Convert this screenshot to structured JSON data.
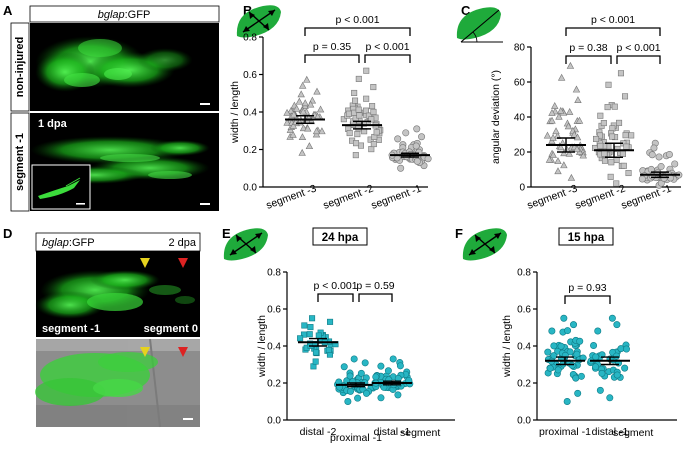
{
  "panels": {
    "A": {
      "letter": "A",
      "header_gene": "bglap",
      "header_suffix": ":GFP",
      "row1_label": "non-injured",
      "row2_label": "segment -1",
      "row2_time": "1 dpa"
    },
    "D": {
      "letter": "D",
      "header_gene": "bglap",
      "header_suffix": ":GFP",
      "time": "2 dpa",
      "seg_left": "segment -1",
      "seg_right": "segment 0"
    }
  },
  "chart_data": [
    {
      "id": "B",
      "letter": "B",
      "type": "scatter",
      "ylabel": "width / length",
      "ylim": [
        0,
        0.8
      ],
      "yticks": [
        0,
        0.2,
        0.4,
        0.6,
        0.8
      ],
      "categories": [
        "segment -3",
        "segment -2",
        "segment -1"
      ],
      "markers": [
        "triangle",
        "square",
        "circle"
      ],
      "means": [
        0.36,
        0.33,
        0.17
      ],
      "ci": [
        [
          0.34,
          0.38
        ],
        [
          0.31,
          0.35
        ],
        [
          0.16,
          0.18
        ]
      ],
      "spread": [
        [
          0.18,
          0.57
        ],
        [
          0.17,
          0.62
        ],
        [
          0.1,
          0.31
        ]
      ],
      "n": [
        55,
        55,
        50
      ],
      "comparisons": [
        {
          "from": 0,
          "to": 1,
          "label": "p = 0.35",
          "level": 1
        },
        {
          "from": 1,
          "to": 2,
          "label": "p < 0.001",
          "level": 1
        },
        {
          "from": 0,
          "to": 2,
          "label": "p < 0.001",
          "level": 2
        }
      ]
    },
    {
      "id": "C",
      "letter": "C",
      "type": "scatter",
      "ylabel": "angular deviation (°)",
      "ylim": [
        0,
        80
      ],
      "yticks": [
        0,
        20,
        40,
        60,
        80
      ],
      "categories": [
        "segment -3",
        "segment -2",
        "segment -1"
      ],
      "markers": [
        "triangle",
        "square",
        "circle"
      ],
      "means": [
        24,
        21,
        7
      ],
      "ci": [
        [
          20,
          28
        ],
        [
          17,
          25
        ],
        [
          5.5,
          8.5
        ]
      ],
      "spread": [
        [
          5,
          69
        ],
        [
          2,
          65
        ],
        [
          1,
          25
        ]
      ],
      "n": [
        55,
        55,
        45
      ],
      "comparisons": [
        {
          "from": 0,
          "to": 1,
          "label": "p = 0.38",
          "level": 1
        },
        {
          "from": 1,
          "to": 2,
          "label": "p < 0.001",
          "level": 1
        },
        {
          "from": 0,
          "to": 2,
          "label": "p < 0.001",
          "level": 2
        }
      ]
    },
    {
      "id": "E",
      "letter": "E",
      "type": "scatter",
      "title": "24 hpa",
      "ylabel": "width / length",
      "xlabel": "segment",
      "ylim": [
        0,
        0.8
      ],
      "yticks": [
        0,
        0.2,
        0.4,
        0.6,
        0.8
      ],
      "categories": [
        "distal -2",
        "proximal -1",
        "distal -1"
      ],
      "markers": [
        "square",
        "circle",
        "circle"
      ],
      "means": [
        0.42,
        0.19,
        0.2
      ],
      "ci": [
        [
          0.4,
          0.44
        ],
        [
          0.18,
          0.2
        ],
        [
          0.19,
          0.21
        ]
      ],
      "spread": [
        [
          0.29,
          0.55
        ],
        [
          0.1,
          0.33
        ],
        [
          0.12,
          0.33
        ]
      ],
      "n": [
        35,
        40,
        40
      ],
      "comparisons": [
        {
          "from": 0,
          "to": 1,
          "label": "p < 0.001",
          "level": 1
        },
        {
          "from": 1,
          "to": 2,
          "label": "p = 0.59",
          "level": 1
        }
      ]
    },
    {
      "id": "F",
      "letter": "F",
      "type": "scatter",
      "title": "15 hpa",
      "ylabel": "width / length",
      "xlabel": "segment",
      "ylim": [
        0,
        0.8
      ],
      "yticks": [
        0,
        0.2,
        0.4,
        0.6,
        0.8
      ],
      "categories": [
        "proximal -1",
        "distal -1"
      ],
      "markers": [
        "circle",
        "circle"
      ],
      "means": [
        0.32,
        0.32
      ],
      "ci": [
        [
          0.3,
          0.34
        ],
        [
          0.3,
          0.34
        ]
      ],
      "spread": [
        [
          0.1,
          0.55
        ],
        [
          0.12,
          0.55
        ]
      ],
      "n": [
        60,
        40
      ],
      "comparisons": [
        {
          "from": 0,
          "to": 1,
          "label": "p = 0.93",
          "level": 1
        }
      ]
    }
  ],
  "colors": {
    "gfp": "#2fd62f",
    "teal": "#28b6c4",
    "teal_edge": "#0f7c87",
    "gray_fill": "#c4c4c4",
    "gray_edge": "#777777",
    "leaf": "#1faa3b",
    "arrow_yellow": "#e6d21e",
    "arrow_red": "#dd2222"
  },
  "icons": [
    "leaf-double-arrow-icon",
    "leaf-angle-icon"
  ]
}
